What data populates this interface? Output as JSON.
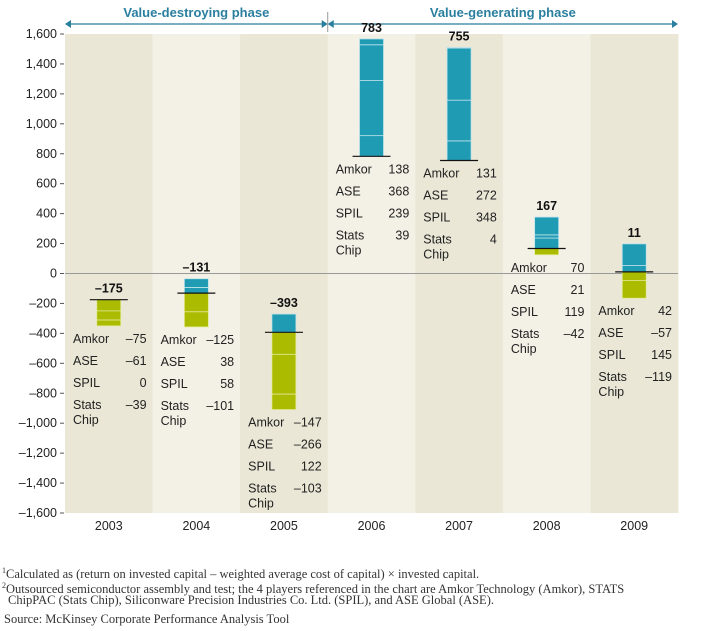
{
  "chart_data": {
    "type": "bar",
    "subtype": "stacked-waterfall",
    "categories": [
      "2003",
      "2004",
      "2005",
      "2006",
      "2007",
      "2008",
      "2009"
    ],
    "totals": [
      -175,
      -131,
      -393,
      783,
      755,
      167,
      11
    ],
    "total_labels": [
      "–175",
      "–131",
      "–393",
      "783",
      "755",
      "167",
      "11"
    ],
    "series": [
      {
        "name": "Amkor",
        "values": [
          -75,
          -125,
          -147,
          138,
          131,
          70,
          42
        ],
        "labels": [
          "–75",
          "–125",
          "–147",
          "138",
          "131",
          "70",
          "42"
        ]
      },
      {
        "name": "ASE",
        "values": [
          -61,
          38,
          -266,
          368,
          272,
          21,
          -57
        ],
        "labels": [
          "–61",
          "38",
          "–266",
          "368",
          "272",
          "21",
          "–57"
        ]
      },
      {
        "name": "SPIL",
        "values": [
          0,
          58,
          122,
          239,
          348,
          119,
          145
        ],
        "labels": [
          "0",
          "58",
          "122",
          "239",
          "348",
          "119",
          "145"
        ]
      },
      {
        "name": "Stats Chip",
        "values": [
          -39,
          -101,
          -103,
          39,
          4,
          -42,
          -119
        ],
        "labels": [
          "–39",
          "–101",
          "–103",
          "39",
          "4",
          "–42",
          "–119"
        ]
      }
    ],
    "series_name_lines": [
      [
        "Amkor"
      ],
      [
        "ASE"
      ],
      [
        "SPIL"
      ],
      [
        "Stats",
        "Chip"
      ]
    ],
    "ylim": [
      -1600,
      1600
    ],
    "yticks": [
      1600,
      1400,
      1200,
      1000,
      800,
      600,
      400,
      200,
      0,
      -200,
      -400,
      -600,
      -800,
      -1000,
      -1200,
      -1400,
      -1600
    ],
    "ytick_labels": [
      "1,600",
      "1,400",
      "1,200",
      "1,000",
      "800",
      "600",
      "400",
      "200",
      "0",
      "–200",
      "–400",
      "–600",
      "–800",
      "–1,000",
      "–1,200",
      "–1,400",
      "–1,600"
    ],
    "phases": [
      {
        "label": "Value-destroying phase",
        "from": "2003",
        "to": "2005"
      },
      {
        "label": "Value-generating phase",
        "from": "2006",
        "to": "2009"
      }
    ],
    "colors": {
      "positive": "#1f9bb4",
      "negative": "#aabb00",
      "phase": "#2a7f9f",
      "bg_a": "#ebe7d6",
      "bg_b": "#f3f1e6"
    }
  },
  "footnotes": {
    "note1_mark": "1",
    "note1": "Calculated as (return on invested capital – weighted average cost of capital) × invested capital.",
    "note2_mark": "2",
    "note2_line1": "Outsourced semiconductor assembly and test; the 4 players referenced in the chart are Amkor Technology (Amkor), STATS",
    "note2_line2": "ChipPAC (Stats Chip), Siliconware Precision Industries Co. Ltd. (SPIL), and ASE Global (ASE).",
    "source": "Source: McKinsey Corporate Performance Analysis Tool"
  }
}
